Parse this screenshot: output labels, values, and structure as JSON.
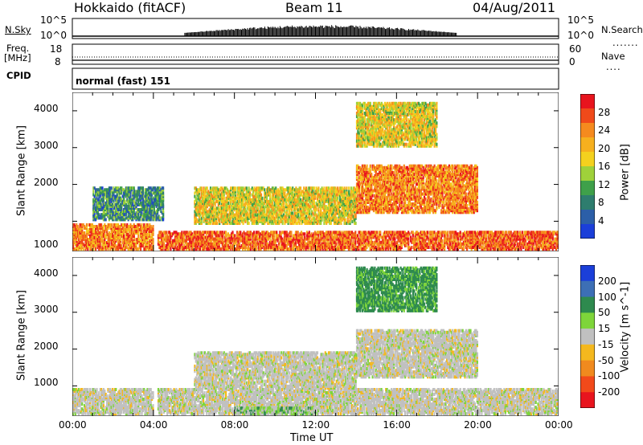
{
  "header": {
    "station": "Hokkaido (fitACF)",
    "beam": "Beam 11",
    "date": "04/Aug/2011"
  },
  "strips": {
    "noise_label": "N.Sky",
    "noise_right_label": "N.Search",
    "noise_ticks_left": [
      "10^5",
      "10^0"
    ],
    "noise_ticks_right": [
      "10^5",
      "10^0"
    ],
    "freq_label_1": "Freq.",
    "freq_label_2": "[MHz]",
    "freq_ticks_left": [
      "18",
      "8"
    ],
    "freq_ticks_right": [
      "60",
      "0"
    ],
    "nave_label": "Nave",
    "cpid_label": "CPID",
    "cpid_value": "normal (fast) 151"
  },
  "x_axis": {
    "title": "Time UT",
    "ticks": [
      "00:00",
      "04:00",
      "08:00",
      "12:00",
      "16:00",
      "20:00",
      "00:00"
    ]
  },
  "power_panel": {
    "ylabel": "Slant Range [km]",
    "yticks": [
      "1000",
      "2000",
      "3000",
      "4000"
    ],
    "colorbar_label": "Power [dB]",
    "colorbar_ticks": [
      "28",
      "24",
      "20",
      "16",
      "12",
      "8",
      "4"
    ],
    "colors": [
      "#e8141e",
      "#f04a1a",
      "#f58a1e",
      "#f6b01e",
      "#f4d11e",
      "#9fd13a",
      "#3fa04a",
      "#2e7d6e",
      "#2c5fa8",
      "#1b3fd9"
    ]
  },
  "velocity_panel": {
    "ylabel": "Slant Range [km]",
    "yticks": [
      "1000",
      "2000",
      "3000",
      "4000"
    ],
    "colorbar_label": "Velocity [m s^-1]",
    "colorbar_ticks": [
      "200",
      "100",
      "50",
      "15",
      "-15",
      "-50",
      "-100",
      "-200"
    ],
    "colors": [
      "#1b3fd9",
      "#3d6fb5",
      "#2e8a4e",
      "#7ed53a",
      "#c0c0c0",
      "#f4b81e",
      "#f08a1e",
      "#f24a1a",
      "#e8141e"
    ]
  },
  "chart_data": [
    {
      "type": "heatmap",
      "title": "Power",
      "xlabel": "Time UT",
      "ylabel": "Slant Range [km]",
      "xlim": [
        "00:00",
        "24:00"
      ],
      "ylim": [
        180,
        4500
      ],
      "legend": "right",
      "colorbar": {
        "label": "Power [dB]",
        "range": [
          0,
          30
        ],
        "ticks": [
          4,
          8,
          12,
          16,
          20,
          24,
          28
        ]
      },
      "regions": [
        {
          "x0": 0,
          "x1": 4,
          "y0": 200,
          "y1": 900,
          "value": 24
        },
        {
          "x0": 4.2,
          "x1": 24,
          "y0": 200,
          "y1": 700,
          "value": 26
        },
        {
          "x0": 6,
          "x1": 14,
          "y0": 900,
          "y1": 1900,
          "value": 18
        },
        {
          "x0": 14,
          "x1": 20,
          "y0": 1200,
          "y1": 2500,
          "value": 24
        },
        {
          "x0": 1,
          "x1": 4.5,
          "y0": 1000,
          "y1": 1900,
          "value": 10
        },
        {
          "x0": 14,
          "x1": 18,
          "y0": 3000,
          "y1": 4200,
          "value": 18
        }
      ]
    },
    {
      "type": "heatmap",
      "title": "Velocity",
      "xlabel": "Time UT",
      "ylabel": "Slant Range [km]",
      "xlim": [
        "00:00",
        "24:00"
      ],
      "ylim": [
        180,
        4500
      ],
      "legend": "right",
      "colorbar": {
        "label": "Velocity [m s^-1]",
        "range": [
          -250,
          250
        ],
        "ticks": [
          200,
          100,
          50,
          15,
          -15,
          -50,
          -100,
          -200
        ]
      },
      "regions": [
        {
          "x0": 0,
          "x1": 4,
          "y0": 200,
          "y1": 900,
          "value": 0
        },
        {
          "x0": 4.2,
          "x1": 24,
          "y0": 200,
          "y1": 900,
          "value": 0
        },
        {
          "x0": 6,
          "x1": 14,
          "y0": 900,
          "y1": 1900,
          "value": 0
        },
        {
          "x0": 14,
          "x1": 20,
          "y0": 1200,
          "y1": 2500,
          "value": 0
        },
        {
          "x0": 8,
          "x1": 12,
          "y0": 200,
          "y1": 400,
          "value": 20
        },
        {
          "x0": 14,
          "x1": 18,
          "y0": 3000,
          "y1": 4200,
          "value": 40
        }
      ]
    }
  ]
}
